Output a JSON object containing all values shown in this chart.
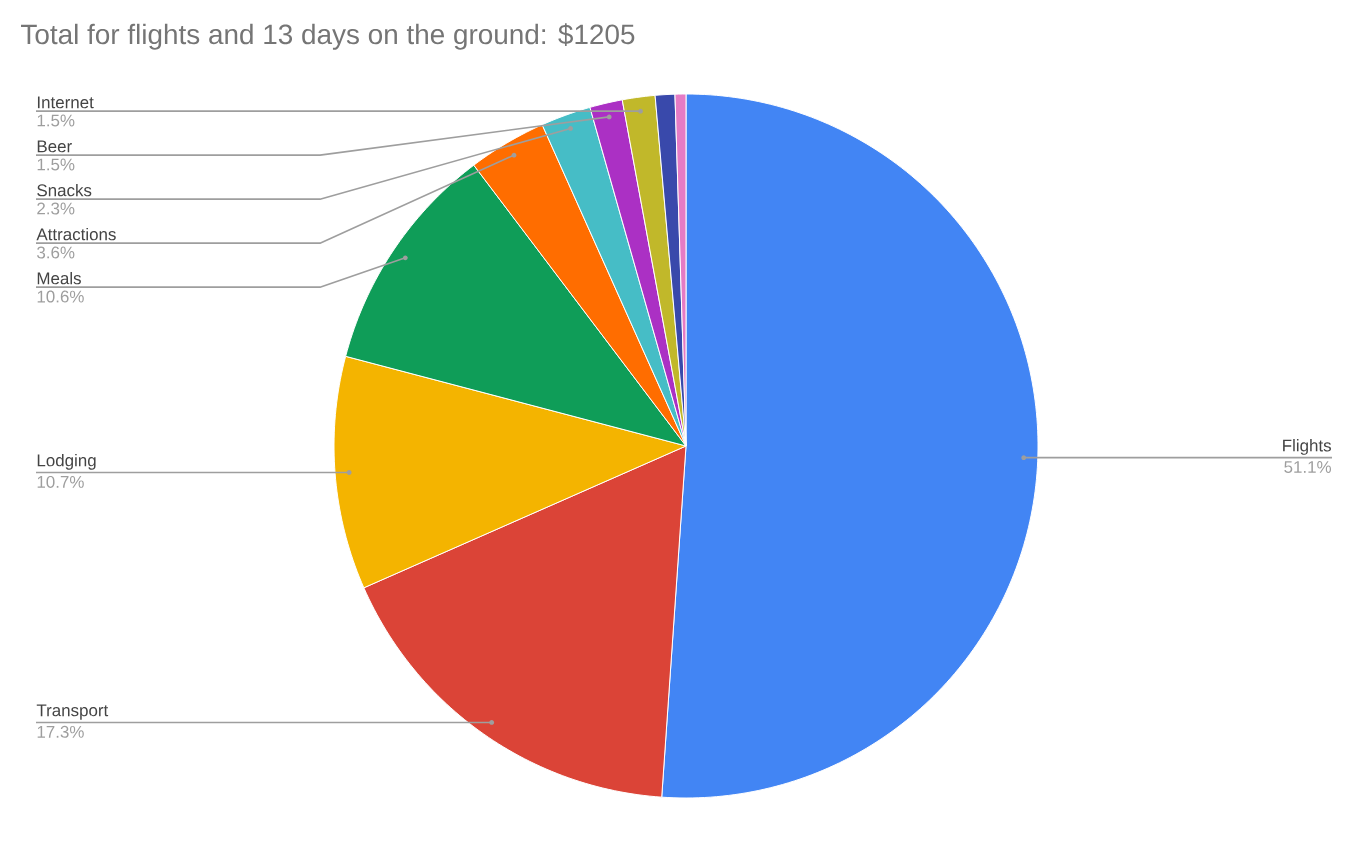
{
  "chart_data": {
    "type": "pie",
    "title": "Total for flights and 13 days on the ground: $1205",
    "categories": [
      "Flights",
      "Transport",
      "Lodging",
      "Meals",
      "Attractions",
      "Snacks",
      "Beer",
      "Internet",
      null,
      null
    ],
    "values": [
      51.1,
      17.3,
      10.7,
      10.6,
      3.6,
      2.3,
      1.5,
      1.5,
      0.9,
      0.5
    ],
    "colors": [
      "#4285f4",
      "#db4437",
      "#f4b400",
      "#0f9d58",
      "#ff6d00",
      "#46bdc6",
      "#ab30c4",
      "#c1b82a",
      "#3949ab",
      "#e57bc5"
    ],
    "value_labels": [
      "51.1%",
      "17.3%",
      "10.7%",
      "10.6%",
      "3.6%",
      "2.3%",
      "1.5%",
      "1.5%",
      null,
      null
    ]
  }
}
